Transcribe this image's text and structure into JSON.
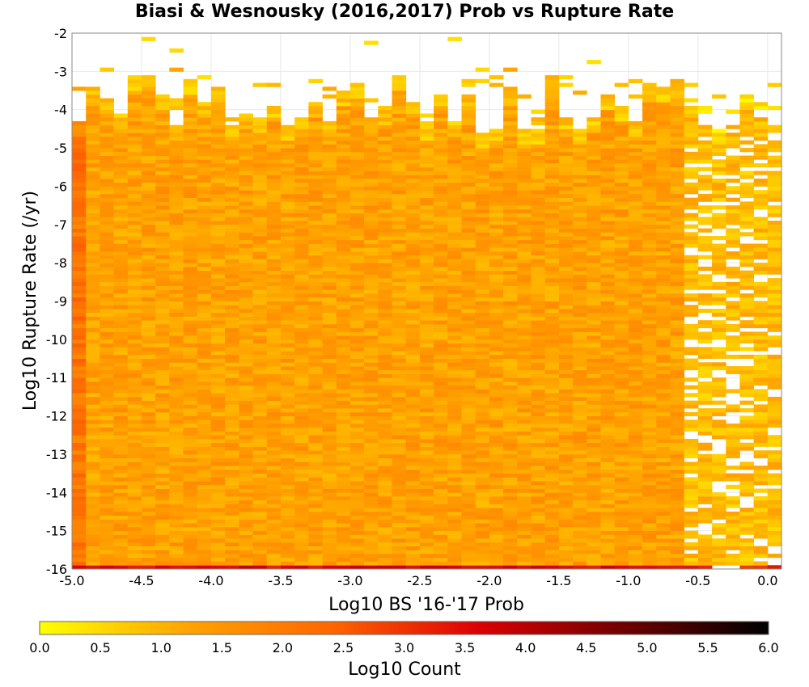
{
  "chart_data": {
    "type": "heatmap",
    "title": "Biasi & Wesnousky (2016,2017) Prob vs Rupture Rate",
    "xlabel": "Log10 BS '16-'17 Prob",
    "ylabel": "Log10 Rupture Rate (/yr)",
    "xlim": [
      -5.0,
      0.1
    ],
    "ylim": [
      -16,
      -2
    ],
    "x_ticks": [
      "-5.0",
      "-4.5",
      "-4.0",
      "-3.5",
      "-3.0",
      "-2.5",
      "-2.0",
      "-1.5",
      "-1.0",
      "-0.5",
      "0.0"
    ],
    "y_ticks": [
      "-2",
      "-3",
      "-4",
      "-5",
      "-6",
      "-7",
      "-8",
      "-9",
      "-10",
      "-11",
      "-12",
      "-13",
      "-14",
      "-15",
      "-16"
    ],
    "bin_size": 0.1,
    "grid": true,
    "colorbar": {
      "label": "Log10 Count",
      "range": [
        0.0,
        6.0
      ],
      "ticks": [
        "0.0",
        "0.5",
        "1.0",
        "1.5",
        "2.0",
        "2.5",
        "3.0",
        "3.5",
        "4.0",
        "4.5",
        "5.0",
        "5.5",
        "6.0"
      ],
      "colors": [
        "#ffff00",
        "#ffa500",
        "#ff6600",
        "#dd0000",
        "#700000",
        "#000000"
      ],
      "placement": "bottom"
    },
    "density_description": {
      "typical_log_count": 1.3,
      "column_x_min_edge": 2.3,
      "row_y_min_edge": 3.3
    }
  }
}
